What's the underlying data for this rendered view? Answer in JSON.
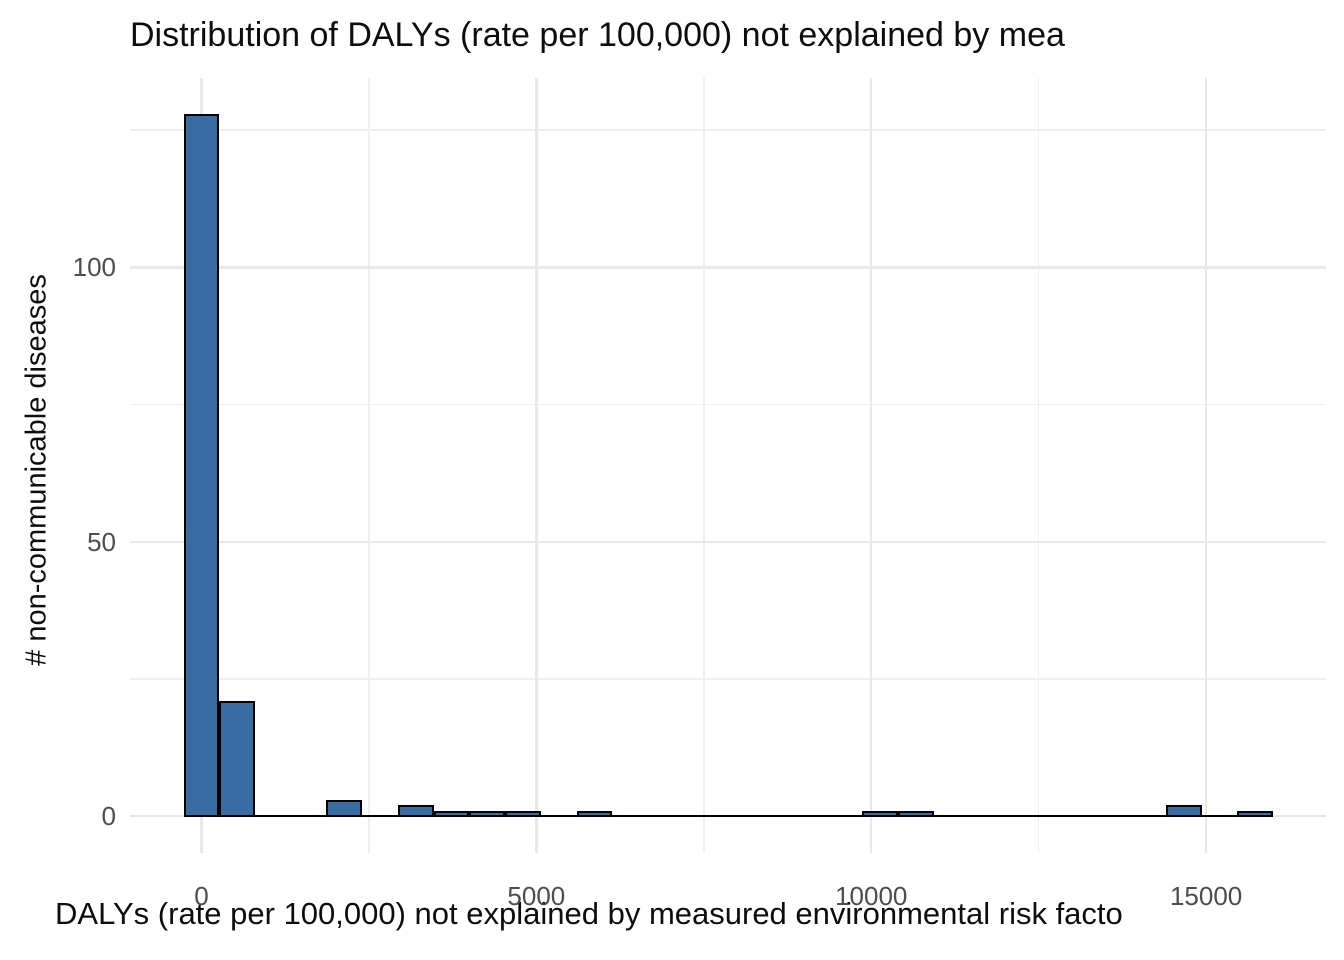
{
  "chart_data": {
    "type": "bar",
    "chart_kind": "histogram",
    "title": "Distribution of DALYs (rate per 100,000) not explained by mea",
    "xlabel": "DALYs (rate per 100,000) not explained by measured environmental risk facto",
    "ylabel": "# non-communicable diseases",
    "x_ticks": [
      0,
      5000,
      10000,
      15000
    ],
    "x_tick_labels": [
      "0",
      "5000",
      "10000",
      "15000"
    ],
    "x_minor_ticks": [
      2500,
      7500,
      12500
    ],
    "y_ticks": [
      0,
      50,
      100
    ],
    "y_tick_labels": [
      "0",
      "50",
      "100"
    ],
    "y_minor_ticks": [
      25,
      75,
      125
    ],
    "xlim": [
      -1067,
      16790
    ],
    "ylim": [
      -6.7,
      134.5
    ],
    "bin_width": 533,
    "baseline_extent": [
      -267,
      16000
    ],
    "bins": [
      {
        "center": 0,
        "count": 128
      },
      {
        "center": 533,
        "count": 21
      },
      {
        "center": 2133,
        "count": 3
      },
      {
        "center": 3200,
        "count": 2
      },
      {
        "center": 3733,
        "count": 1
      },
      {
        "center": 4267,
        "count": 1
      },
      {
        "center": 4800,
        "count": 1
      },
      {
        "center": 5867,
        "count": 1
      },
      {
        "center": 10133,
        "count": 1
      },
      {
        "center": 10667,
        "count": 1
      },
      {
        "center": 14667,
        "count": 2
      },
      {
        "center": 15733,
        "count": 1
      }
    ],
    "grid": true,
    "legend": null,
    "colors": {
      "background": "#FFFFFF",
      "bar_fill": "#3A6CA4",
      "bar_border": "#000000",
      "grid_major": "#E8E8E8",
      "grid_minor": "#EFEFEF",
      "tick_label": "#4D4D4D",
      "text": "#0D0D0D"
    }
  }
}
